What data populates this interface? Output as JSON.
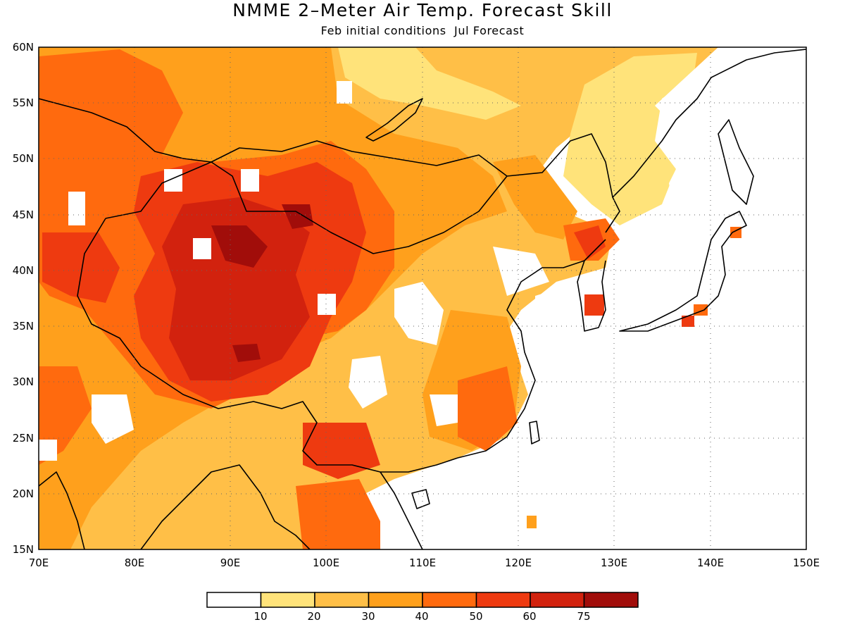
{
  "title": "NMME 2–Meter Air Temp. Forecast Skill",
  "subtitle": "Feb initial conditions  Jul Forecast",
  "map": {
    "lon_range": [
      70,
      150
    ],
    "lat_range": [
      15,
      60
    ],
    "lat_labels": [
      "60N",
      "55N",
      "50N",
      "45N",
      "40N",
      "35N",
      "30N",
      "25N",
      "20N",
      "15N"
    ],
    "lon_labels": [
      "70E",
      "80E",
      "90E",
      "100E",
      "110E",
      "120E",
      "130E",
      "140E",
      "150E"
    ],
    "grid": "dotted"
  },
  "colorbar": {
    "boundaries": [
      "10",
      "20",
      "30",
      "40",
      "50",
      "60",
      "75"
    ],
    "colors": [
      "#ffffff",
      "#ffe37a",
      "#ffbf47",
      "#ffa01c",
      "#ff6a0e",
      "#ee3a10",
      "#d2220e",
      "#a10d0a"
    ]
  }
}
